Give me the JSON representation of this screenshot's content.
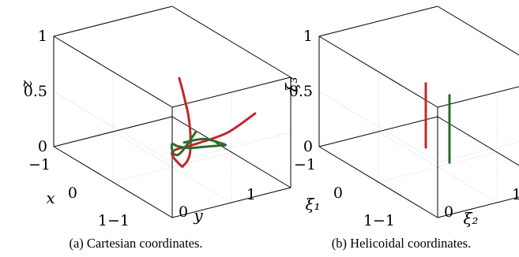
{
  "colors": {
    "red": "#c0282d",
    "green": "#2e6b2a"
  },
  "chart_data": [
    {
      "type": "line3d",
      "caption": "(a) Cartesian coordinates.",
      "xlabel": "x",
      "ylabel": "y",
      "zlabel": "z",
      "xlim": [
        -1,
        1
      ],
      "ylim": [
        -1,
        1
      ],
      "zlim": [
        0,
        1
      ],
      "ticks": {
        "x": [
          "−1",
          "0",
          "1"
        ],
        "y": [
          "−1",
          "0",
          "1"
        ],
        "z": [
          "0",
          "0.5",
          "1"
        ]
      },
      "grid": true,
      "series": [
        {
          "color": "red",
          "points": [
            [
              -0.02,
              0.14,
              0.78
            ],
            [
              0.04,
              0.13,
              0.7
            ],
            [
              0.12,
              0.1,
              0.62
            ],
            [
              0.22,
              0.05,
              0.54
            ],
            [
              0.3,
              0.0,
              0.45
            ],
            [
              0.36,
              -0.05,
              0.35
            ],
            [
              0.38,
              -0.08,
              0.26
            ],
            [
              0.36,
              -0.1,
              0.19
            ],
            [
              0.32,
              -0.12,
              0.14
            ],
            [
              0.28,
              -0.13,
              0.12
            ],
            [
              0.05,
              -0.05,
              0.16
            ],
            [
              0.14,
              0.26,
              0.22
            ],
            [
              0.38,
              0.55,
              0.36
            ],
            [
              0.62,
              0.78,
              0.58
            ]
          ]
        },
        {
          "color": "green",
          "points": [
            [
              0.62,
              -0.42,
              0.48
            ],
            [
              0.52,
              0.02,
              0.42
            ],
            [
              0.5,
              0.3,
              0.34
            ],
            [
              0.4,
              0.5,
              0.26
            ],
            [
              0.2,
              0.58,
              0.18
            ],
            [
              0.02,
              0.52,
              0.12
            ],
            [
              -0.12,
              0.4,
              0.08
            ],
            [
              -0.2,
              0.28,
              0.09
            ],
            [
              -0.22,
              0.22,
              0.11
            ],
            [
              -0.05,
              0.05,
              0.13
            ],
            [
              0.1,
              -0.05,
              0.15
            ],
            [
              0.18,
              -0.02,
              0.2
            ],
            [
              0.25,
              0.15,
              0.38
            ]
          ]
        }
      ]
    },
    {
      "type": "line3d",
      "caption": "(b) Helicoidal coordinates.",
      "xlabel": "ξ₁",
      "ylabel": "ξ₂",
      "zlabel": "ξ₃",
      "xlim": [
        -1,
        1
      ],
      "ylim": [
        -1,
        1
      ],
      "zlim": [
        0,
        1
      ],
      "ticks": {
        "x": [
          "−1",
          "0",
          "1"
        ],
        "y": [
          "−1",
          "0",
          "1"
        ],
        "z": [
          "0",
          "0.5",
          "1"
        ]
      },
      "grid": true,
      "series": [
        {
          "color": "red",
          "points": [
            [
              -0.1,
              -0.1,
              0.16
            ],
            [
              -0.1,
              -0.1,
              0.74
            ]
          ]
        },
        {
          "color": "green",
          "points": [
            [
              0.1,
              0.1,
              0.06
            ],
            [
              0.1,
              0.1,
              0.67
            ]
          ]
        }
      ]
    }
  ]
}
